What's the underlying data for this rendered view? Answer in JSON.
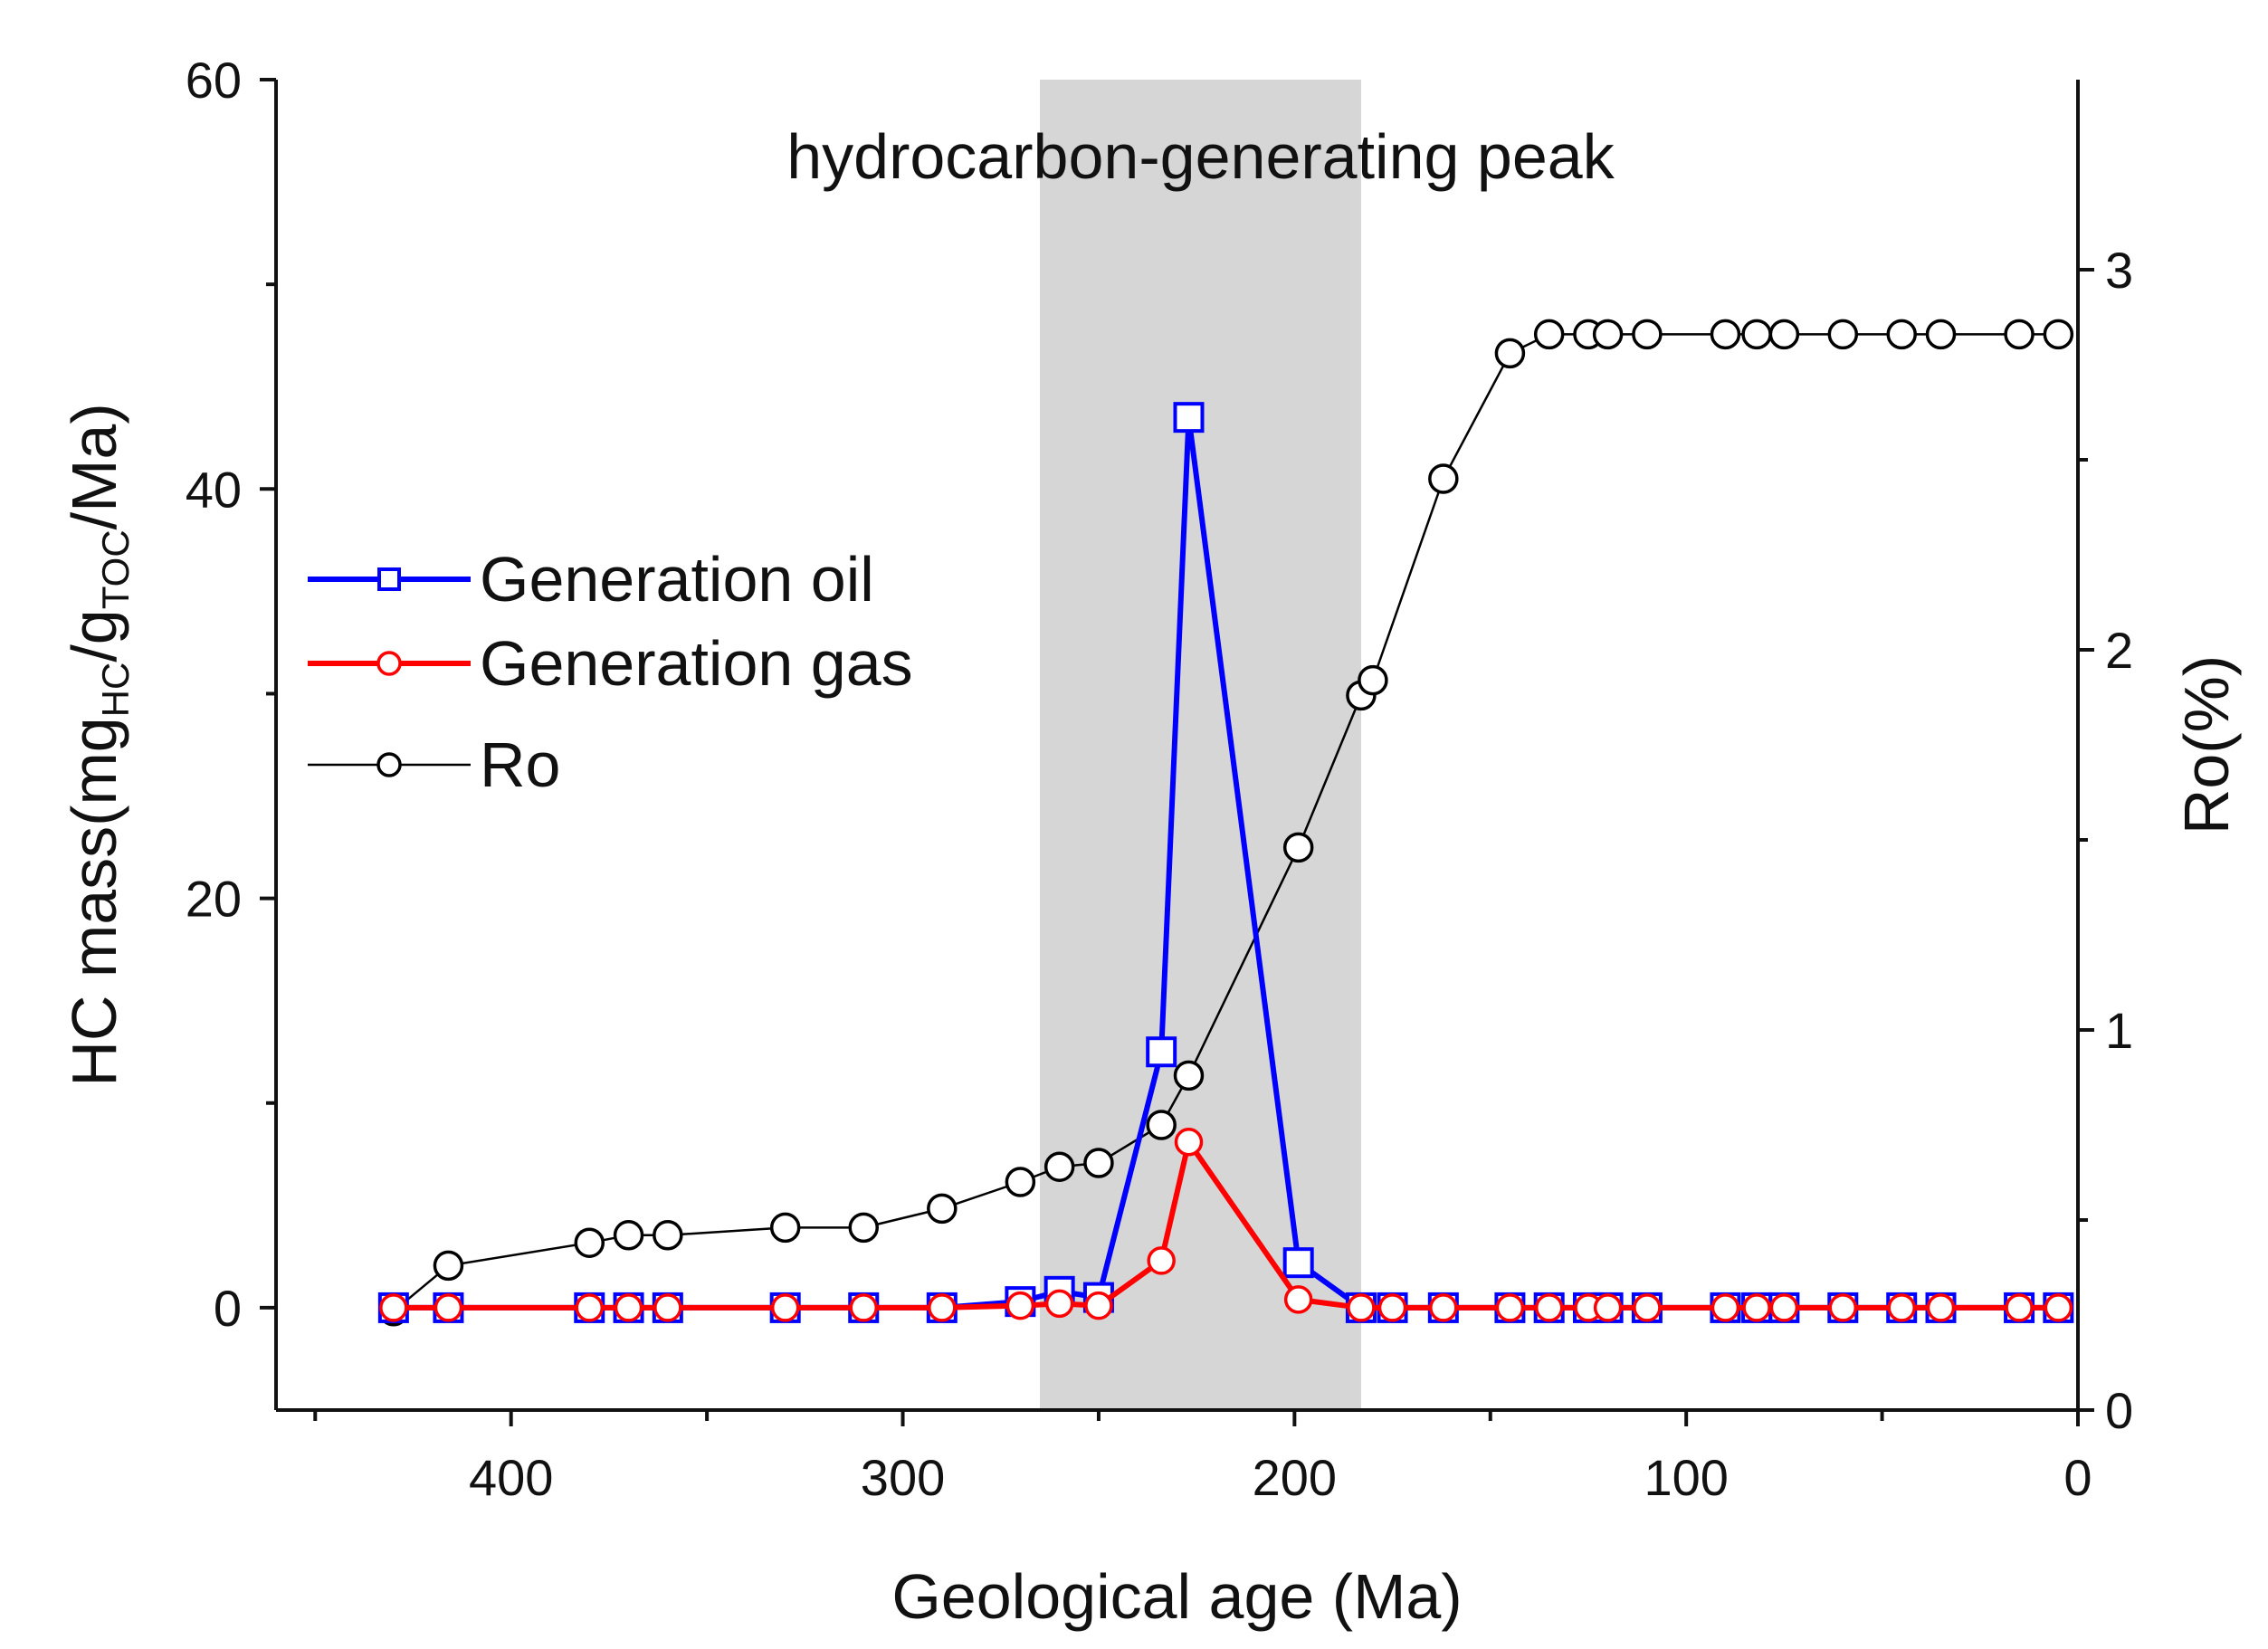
{
  "chart_data": {
    "type": "line",
    "xlabel": "Geological age (Ma)",
    "ylabel_left": {
      "prefix": "HC mass(mg",
      "sub1": "HC",
      "mid": "/g",
      "sub2": "TOC",
      "suffix": "/Ma)"
    },
    "ylabel_right": "Ro(%)",
    "xlim": [
      460,
      0
    ],
    "xticks": [
      400,
      300,
      200,
      100,
      0
    ],
    "xtick_labels": [
      "400",
      "300",
      "200",
      "100",
      "0"
    ],
    "xminor": [
      450,
      350,
      250,
      150,
      50
    ],
    "ylim_left": [
      -5,
      60
    ],
    "yticks_left": [
      0,
      20,
      40,
      60
    ],
    "ytick_labels_left": [
      "0",
      "20",
      "40",
      "60"
    ],
    "ylim_right": [
      0,
      3.5
    ],
    "yticks_right": [
      0,
      1,
      2,
      3
    ],
    "ytick_labels_right": [
      "0",
      "1",
      "2",
      "3"
    ],
    "shaded_band": {
      "from": 265,
      "to": 183,
      "color": "#d6d6d6",
      "label": "hydrocarbon-generating peak"
    },
    "legend": [
      "Generation oil",
      "Generation gas",
      "Ro"
    ],
    "series": [
      {
        "name": "Generation oil",
        "axis": "left",
        "color": "#0000ff",
        "marker": "square",
        "x": [
          430,
          416,
          380,
          370,
          360,
          330,
          310,
          290,
          270,
          260,
          250,
          234,
          227,
          199,
          183,
          175,
          162,
          145,
          135,
          125,
          120,
          110,
          90,
          82,
          75,
          60,
          45,
          35,
          15,
          5
        ],
        "y": [
          0,
          0,
          0,
          0,
          0,
          0,
          0,
          0,
          0.3,
          0.8,
          0.5,
          12.5,
          43.5,
          2.2,
          0,
          0,
          0,
          0,
          0,
          0,
          0,
          0,
          0,
          0,
          0,
          0,
          0,
          0,
          0,
          0
        ]
      },
      {
        "name": "Generation gas",
        "axis": "left",
        "color": "#ff0000",
        "marker": "circle",
        "x": [
          430,
          416,
          380,
          370,
          360,
          330,
          310,
          290,
          270,
          260,
          250,
          234,
          227,
          199,
          183,
          175,
          162,
          145,
          135,
          125,
          120,
          110,
          90,
          82,
          75,
          60,
          45,
          35,
          15,
          5
        ],
        "y": [
          0,
          0,
          0,
          0,
          0,
          0,
          0,
          0,
          0.1,
          0.2,
          0.1,
          2.3,
          8.1,
          0.4,
          0,
          0,
          0,
          0,
          0,
          0,
          0,
          0,
          0,
          0,
          0,
          0,
          0,
          0,
          0,
          0
        ]
      },
      {
        "name": "Ro",
        "axis": "right",
        "color": "#000000",
        "marker": "circle",
        "x": [
          430,
          416,
          380,
          370,
          360,
          330,
          310,
          290,
          270,
          260,
          250,
          234,
          227,
          199,
          183,
          180,
          162,
          145,
          135,
          125,
          120,
          110,
          90,
          82,
          75,
          60,
          45,
          35,
          15,
          5
        ],
        "y": [
          0.26,
          0.38,
          0.44,
          0.46,
          0.46,
          0.48,
          0.48,
          0.53,
          0.6,
          0.64,
          0.65,
          0.75,
          0.88,
          1.48,
          1.88,
          1.92,
          2.45,
          2.78,
          2.83,
          2.83,
          2.83,
          2.83,
          2.83,
          2.83,
          2.83,
          2.83,
          2.83,
          2.83,
          2.83,
          2.83
        ]
      }
    ]
  }
}
